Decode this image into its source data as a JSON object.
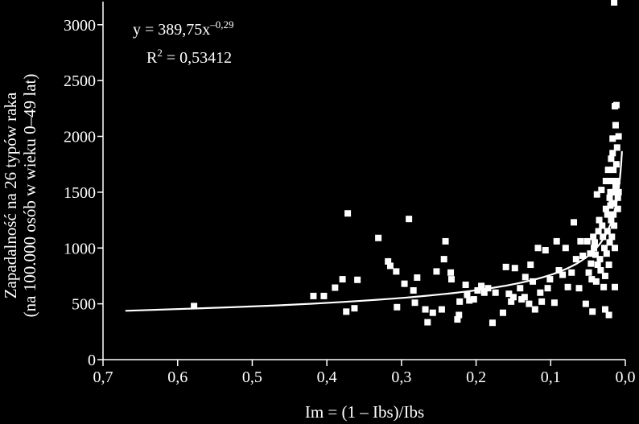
{
  "chart_data": {
    "type": "scatter",
    "title": "",
    "xlabel": "Im = (1 – Ibs)/Ibs",
    "ylabel_line1": "Zapadalność na 26 typów raka",
    "ylabel_line2": "(na 100.000 osób w wieku 0–49 lat)",
    "x_reversed": true,
    "xlim": [
      0.7,
      0.0
    ],
    "ylim": [
      0,
      3200
    ],
    "x_ticks": [
      0.7,
      0.6,
      0.5,
      0.4,
      0.3,
      0.2,
      0.1,
      0.0
    ],
    "x_tick_labels": [
      "0,7",
      "0,6",
      "0,5",
      "0,4",
      "0,3",
      "0,2",
      "0,1",
      "0,0"
    ],
    "y_ticks": [
      0,
      500,
      1000,
      1500,
      2000,
      2500,
      3000
    ],
    "y_tick_labels": [
      "0",
      "500",
      "1000",
      "1500",
      "2000",
      "2500",
      "3000"
    ],
    "grid": false,
    "equation": {
      "y_part": "y = 389,75x",
      "exponent": "–0,29",
      "r_part": "R",
      "r_sup": "2",
      "r_value": " = 0,53412"
    },
    "trendline": {
      "form": "power",
      "a": 389.75,
      "b": -0.29,
      "x_range": [
        0.67,
        0.0045
      ]
    },
    "colors": {
      "background": "#000000",
      "foreground": "#ffffff"
    },
    "series": [
      {
        "marker": "square",
        "points": [
          [
            0.578,
            480
          ],
          [
            0.418,
            570
          ],
          [
            0.404,
            570
          ],
          [
            0.389,
            645
          ],
          [
            0.379,
            720
          ],
          [
            0.374,
            430
          ],
          [
            0.372,
            1310
          ],
          [
            0.363,
            460
          ],
          [
            0.359,
            715
          ],
          [
            0.331,
            1090
          ],
          [
            0.318,
            880
          ],
          [
            0.315,
            840
          ],
          [
            0.307,
            790
          ],
          [
            0.306,
            470
          ],
          [
            0.296,
            680
          ],
          [
            0.29,
            1260
          ],
          [
            0.284,
            620
          ],
          [
            0.282,
            510
          ],
          [
            0.279,
            735
          ],
          [
            0.268,
            450
          ],
          [
            0.265,
            335
          ],
          [
            0.258,
            420
          ],
          [
            0.253,
            790
          ],
          [
            0.246,
            450
          ],
          [
            0.243,
            900
          ],
          [
            0.241,
            1060
          ],
          [
            0.234,
            780
          ],
          [
            0.233,
            720
          ],
          [
            0.225,
            360
          ],
          [
            0.223,
            400
          ],
          [
            0.222,
            520
          ],
          [
            0.214,
            670
          ],
          [
            0.212,
            580
          ],
          [
            0.209,
            530
          ],
          [
            0.203,
            540
          ],
          [
            0.198,
            620
          ],
          [
            0.193,
            660
          ],
          [
            0.189,
            600
          ],
          [
            0.184,
            640
          ],
          [
            0.178,
            330
          ],
          [
            0.174,
            600
          ],
          [
            0.164,
            420
          ],
          [
            0.16,
            830
          ],
          [
            0.156,
            590
          ],
          [
            0.153,
            520
          ],
          [
            0.15,
            560
          ],
          [
            0.148,
            820
          ],
          [
            0.141,
            640
          ],
          [
            0.139,
            540
          ],
          [
            0.135,
            560
          ],
          [
            0.134,
            740
          ],
          [
            0.129,
            500
          ],
          [
            0.127,
            850
          ],
          [
            0.124,
            700
          ],
          [
            0.121,
            450
          ],
          [
            0.117,
            1000
          ],
          [
            0.114,
            600
          ],
          [
            0.112,
            520
          ],
          [
            0.107,
            980
          ],
          [
            0.104,
            640
          ],
          [
            0.101,
            720
          ],
          [
            0.095,
            510
          ],
          [
            0.092,
            1060
          ],
          [
            0.089,
            800
          ],
          [
            0.084,
            760
          ],
          [
            0.08,
            1000
          ],
          [
            0.077,
            650
          ],
          [
            0.072,
            780
          ],
          [
            0.069,
            1230
          ],
          [
            0.066,
            900
          ],
          [
            0.062,
            640
          ],
          [
            0.06,
            1060
          ],
          [
            0.057,
            930
          ],
          [
            0.053,
            500
          ],
          [
            0.051,
            1060
          ],
          [
            0.049,
            780
          ],
          [
            0.047,
            950
          ],
          [
            0.046,
            860
          ],
          [
            0.045,
            720
          ],
          [
            0.044,
            430
          ],
          [
            0.043,
            1100
          ],
          [
            0.042,
            1000
          ],
          [
            0.041,
            1050
          ],
          [
            0.04,
            940
          ],
          [
            0.039,
            700
          ],
          [
            0.038,
            1480
          ],
          [
            0.037,
            850
          ],
          [
            0.036,
            1150
          ],
          [
            0.035,
            1250
          ],
          [
            0.034,
            900
          ],
          [
            0.033,
            800
          ],
          [
            0.032,
            1520
          ],
          [
            0.031,
            1200
          ],
          [
            0.03,
            1100
          ],
          [
            0.029,
            650
          ],
          [
            0.028,
            1000
          ],
          [
            0.027,
            450
          ],
          [
            0.027,
            750
          ],
          [
            0.026,
            1350
          ],
          [
            0.026,
            1600
          ],
          [
            0.025,
            950
          ],
          [
            0.024,
            1150
          ],
          [
            0.024,
            1300
          ],
          [
            0.023,
            1700
          ],
          [
            0.022,
            400
          ],
          [
            0.022,
            850
          ],
          [
            0.021,
            1450
          ],
          [
            0.021,
            1050
          ],
          [
            0.02,
            1380
          ],
          [
            0.02,
            1500
          ],
          [
            0.019,
            1800
          ],
          [
            0.019,
            1250
          ],
          [
            0.018,
            1100
          ],
          [
            0.018,
            1400
          ],
          [
            0.018,
            1600
          ],
          [
            0.017,
            1850
          ],
          [
            0.017,
            1980
          ],
          [
            0.016,
            1500
          ],
          [
            0.016,
            1300
          ],
          [
            0.016,
            1700
          ],
          [
            0.015,
            3200
          ],
          [
            0.015,
            1200
          ],
          [
            0.015,
            1400
          ],
          [
            0.014,
            1000
          ],
          [
            0.014,
            650
          ],
          [
            0.014,
            2270
          ],
          [
            0.013,
            1550
          ],
          [
            0.013,
            2100
          ],
          [
            0.012,
            2280
          ],
          [
            0.012,
            1750
          ],
          [
            0.011,
            1600
          ],
          [
            0.011,
            1900
          ],
          [
            0.01,
            1450
          ],
          [
            0.01,
            1350
          ],
          [
            0.009,
            1500
          ],
          [
            0.009,
            2000
          ]
        ]
      }
    ]
  }
}
